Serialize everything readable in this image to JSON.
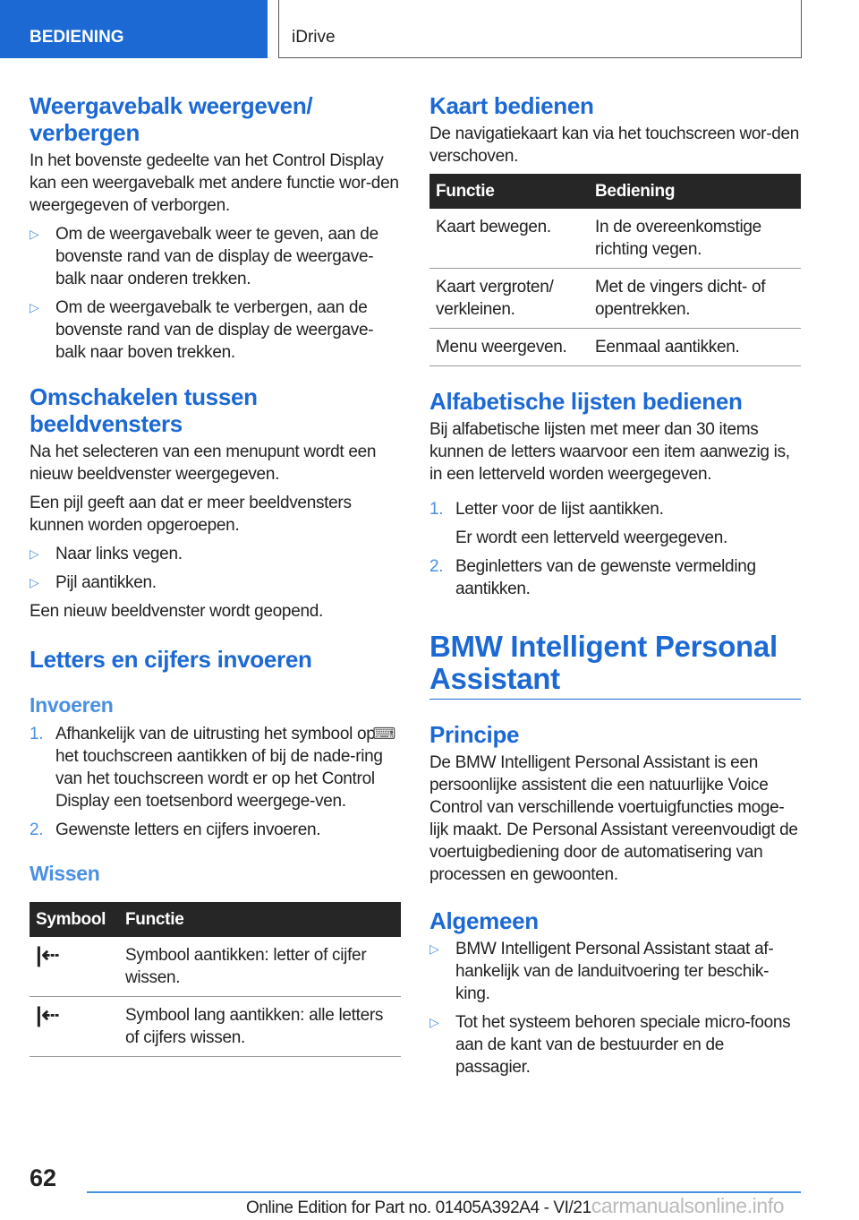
{
  "header": {
    "section": "BEDIENING",
    "chapter": "iDrive"
  },
  "left": {
    "h_toolbar": "Weergavebalk weergeven/ verbergen",
    "p_toolbar": "In het bovenste gedeelte van het Control Display kan een weergavebalk met andere functie wor-den weergegeven of verborgen.",
    "toolbar_items": [
      "Om de weergavebalk weer te geven, aan de bovenste rand van de display de weergave-balk naar onderen trekken.",
      "Om de weergavebalk te verbergen, aan de bovenste rand van de display de weergave-balk naar boven trekken."
    ],
    "h_switch": "Omschakelen tussen beeldvensters",
    "p_switch1": "Na het selecteren van een menupunt wordt een nieuw beeldvenster weergegeven.",
    "p_switch2": "Een pijl geeft aan dat er meer beeldvensters kunnen worden opgeroepen.",
    "switch_items": [
      "Naar links vegen.",
      "Pijl aantikken."
    ],
    "p_switch3": "Een nieuw beeldvenster wordt geopend.",
    "h_letters": "Letters en cijfers invoeren",
    "h_input": "Invoeren",
    "input_steps": [
      {
        "n": "1.",
        "t": "Afhankelijk van de uitrusting het symbool op het touchscreen aantikken of bij de nade-ring van het touchscreen wordt er op het Control Display een toetsenbord weergege-ven."
      },
      {
        "n": "2.",
        "t": "Gewenste letters en cijfers invoeren."
      }
    ],
    "h_delete": "Wissen",
    "delete_table": {
      "headers": [
        "Symbool",
        "Functie"
      ],
      "rows": [
        {
          "icon": "delete-back-icon",
          "text": "Symbool aantikken: letter of cijfer wissen."
        },
        {
          "icon": "delete-back-icon",
          "text": "Symbool lang aantikken: alle letters of cijfers wissen."
        }
      ]
    }
  },
  "right": {
    "h_map": "Kaart bedienen",
    "p_map": "De navigatiekaart kan via het touchscreen wor-den verschoven.",
    "map_table": {
      "headers": [
        "Functie",
        "Bediening"
      ],
      "rows": [
        [
          "Kaart bewegen.",
          "In de overeenkomstige richting vegen."
        ],
        [
          "Kaart vergroten/ verkleinen.",
          "Met de vingers dicht- of opentrekken."
        ],
        [
          "Menu weergeven.",
          "Eenmaal aantikken."
        ]
      ]
    },
    "h_alpha": "Alfabetische lijsten bedienen",
    "p_alpha": "Bij alfabetische lijsten met meer dan 30 items kunnen de letters waarvoor een item aanwezig is, in een letterveld worden weergegeven.",
    "alpha_step1": "Letter voor de lijst aantikken.",
    "alpha_step1_result": "Er wordt een letterveld weergegeven.",
    "alpha_step2": "Beginletters van de gewenste vermelding aantikken.",
    "step_nums": [
      "1.",
      "2."
    ],
    "h_bmw": "BMW Intelligent Personal Assistant",
    "h_principle": "Principe",
    "p_principle": "De BMW Intelligent Personal Assistant is een persoonlijke assistent die een natuurlijke Voice Control van verschillende voertuigfuncties moge-lijk maakt. De Personal Assistant vereenvoudigt de voertuigbediening door de automatisering van processen en gewoonten.",
    "h_general": "Algemeen",
    "general_items": [
      "BMW Intelligent Personal Assistant staat af-hankelijk van de landuitvoering ter beschik-king.",
      "Tot het systeem behoren speciale micro-foons aan de kant van de bestuurder en de passagier."
    ]
  },
  "footer": {
    "page": "62",
    "edition": "Online Edition for Part no. 01405A392A4 - VI/21",
    "watermark": "carmanualsonline.info"
  },
  "colors": {
    "accent": "#1c69d4",
    "subheading": "#4a90e2",
    "table_header": "#262626"
  }
}
